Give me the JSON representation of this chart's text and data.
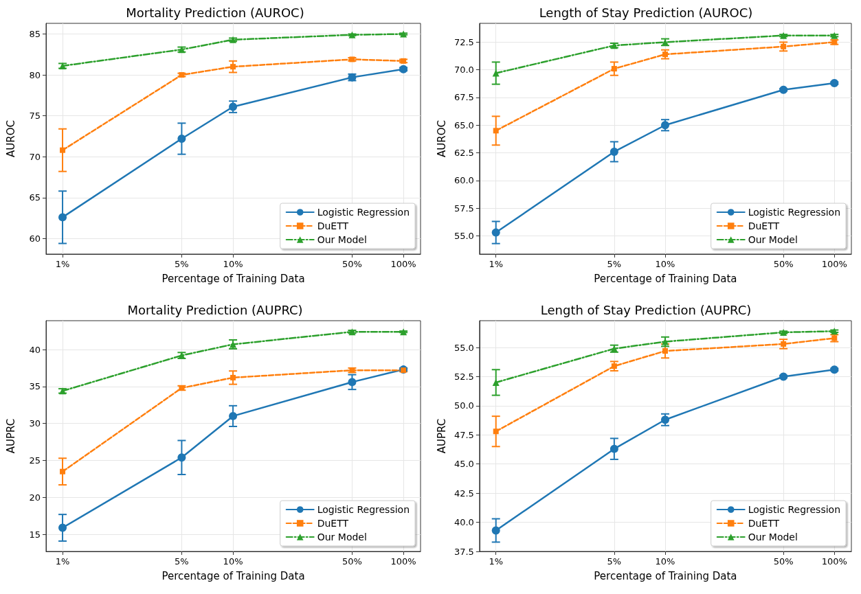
{
  "chart_data": [
    {
      "type": "line",
      "title": "Mortality Prediction (AUROC)",
      "xlabel": "Percentage of Training Data",
      "ylabel": "AUROC",
      "x": [
        1,
        5,
        10,
        50,
        100
      ],
      "log": "x",
      "xlim": [
        0.8,
        126
      ],
      "xticks": [
        {
          "value": 1,
          "label": "1%"
        },
        {
          "value": 5,
          "label": "5%"
        },
        {
          "value": 10,
          "label": "10%"
        },
        {
          "value": 50,
          "label": "50%"
        },
        {
          "value": 100,
          "label": "100%"
        }
      ],
      "ylim": [
        58.1,
        86.3
      ],
      "yticks": [
        60,
        65,
        70,
        75,
        80,
        85
      ],
      "grid": true,
      "legend": "bottom right",
      "series": [
        {
          "name": "Logistic Regression",
          "color": "#1f77b4",
          "marker": "circle",
          "line_style": "solid",
          "values": [
            62.6,
            72.2,
            76.1,
            79.7,
            80.7
          ],
          "errors": [
            3.2,
            1.9,
            0.7,
            0.4,
            0.2
          ]
        },
        {
          "name": "DuETT",
          "color": "#ff7f0e",
          "marker": "square",
          "line_style": "dashed",
          "values": [
            70.8,
            80.0,
            81.0,
            81.9,
            81.7
          ],
          "errors": [
            2.6,
            0.2,
            0.7,
            0.2,
            0.2
          ]
        },
        {
          "name": "Our Model",
          "color": "#2ca02c",
          "marker": "triangle",
          "line_style": "dashdot",
          "values": [
            81.1,
            83.1,
            84.3,
            84.9,
            85.0
          ],
          "errors": [
            0.3,
            0.3,
            0.2,
            0.1,
            0.1
          ]
        }
      ]
    },
    {
      "type": "line",
      "title": "Length of Stay Prediction (AUROC)",
      "xlabel": "Percentage of Training Data",
      "ylabel": "AUROC",
      "x": [
        1,
        5,
        10,
        50,
        100
      ],
      "log": "x",
      "xlim": [
        0.8,
        126
      ],
      "xticks": [
        {
          "value": 1,
          "label": "1%"
        },
        {
          "value": 5,
          "label": "5%"
        },
        {
          "value": 10,
          "label": "10%"
        },
        {
          "value": 50,
          "label": "50%"
        },
        {
          "value": 100,
          "label": "100%"
        }
      ],
      "ylim": [
        53.35,
        74.2
      ],
      "yticks": [
        {
          "value": 55,
          "label": "55.0"
        },
        57.5,
        {
          "value": 60,
          "label": "60.0"
        },
        62.5,
        {
          "value": 65,
          "label": "65.0"
        },
        67.5,
        {
          "value": 70,
          "label": "70.0"
        },
        72.5
      ],
      "grid": true,
      "legend": "bottom right",
      "series": [
        {
          "name": "Logistic Regression",
          "color": "#1f77b4",
          "marker": "circle",
          "line_style": "solid",
          "values": [
            55.3,
            62.6,
            65.0,
            68.2,
            68.8
          ],
          "errors": [
            1.0,
            0.9,
            0.5,
            0.1,
            0.1
          ]
        },
        {
          "name": "DuETT",
          "color": "#ff7f0e",
          "marker": "square",
          "line_style": "dashed",
          "values": [
            64.5,
            70.1,
            71.4,
            72.1,
            72.5
          ],
          "errors": [
            1.3,
            0.6,
            0.4,
            0.4,
            0.2
          ]
        },
        {
          "name": "Our Model",
          "color": "#2ca02c",
          "marker": "triangle",
          "line_style": "dashdot",
          "values": [
            69.7,
            72.2,
            72.5,
            73.1,
            73.1
          ],
          "errors": [
            1.0,
            0.2,
            0.3,
            0.1,
            0.1
          ]
        }
      ]
    },
    {
      "type": "line",
      "title": "Mortality Prediction (AUPRC)",
      "xlabel": "Percentage of Training Data",
      "ylabel": "AUPRC",
      "x": [
        1,
        5,
        10,
        50,
        100
      ],
      "log": "x",
      "xlim": [
        0.8,
        126
      ],
      "xticks": [
        {
          "value": 1,
          "label": "1%"
        },
        {
          "value": 5,
          "label": "5%"
        },
        {
          "value": 10,
          "label": "10%"
        },
        {
          "value": 50,
          "label": "50%"
        },
        {
          "value": 100,
          "label": "100%"
        }
      ],
      "ylim": [
        12.7,
        43.9
      ],
      "yticks": [
        15,
        20,
        25,
        30,
        35,
        40
      ],
      "grid": true,
      "legend": "bottom right",
      "series": [
        {
          "name": "Logistic Regression",
          "color": "#1f77b4",
          "marker": "circle",
          "line_style": "solid",
          "values": [
            15.9,
            25.4,
            31.0,
            35.6,
            37.3
          ],
          "errors": [
            1.8,
            2.3,
            1.4,
            1.0,
            0.2
          ]
        },
        {
          "name": "DuETT",
          "color": "#ff7f0e",
          "marker": "square",
          "line_style": "dashed",
          "values": [
            23.5,
            34.8,
            36.2,
            37.2,
            37.2
          ],
          "errors": [
            1.8,
            0.3,
            0.9,
            0.3,
            0.2
          ]
        },
        {
          "name": "Our Model",
          "color": "#2ca02c",
          "marker": "triangle",
          "line_style": "dashdot",
          "values": [
            34.4,
            39.2,
            40.7,
            42.4,
            42.4
          ],
          "errors": [
            0.3,
            0.4,
            0.6,
            0.2,
            0.1
          ]
        }
      ]
    },
    {
      "type": "line",
      "title": "Length of Stay Prediction (AUPRC)",
      "xlabel": "Percentage of Training Data",
      "ylabel": "AUPRC",
      "x": [
        1,
        5,
        10,
        50,
        100
      ],
      "log": "x",
      "xlim": [
        0.8,
        126
      ],
      "xticks": [
        {
          "value": 1,
          "label": "1%"
        },
        {
          "value": 5,
          "label": "5%"
        },
        {
          "value": 10,
          "label": "10%"
        },
        {
          "value": 50,
          "label": "50%"
        },
        {
          "value": 100,
          "label": "100%"
        }
      ],
      "ylim": [
        37.5,
        57.3
      ],
      "yticks": [
        37.5,
        {
          "value": 40,
          "label": "40.0"
        },
        42.5,
        {
          "value": 45,
          "label": "45.0"
        },
        47.5,
        {
          "value": 50,
          "label": "50.0"
        },
        52.5,
        {
          "value": 55,
          "label": "55.0"
        }
      ],
      "grid": true,
      "legend": "bottom right",
      "series": [
        {
          "name": "Logistic Regression",
          "color": "#1f77b4",
          "marker": "circle",
          "line_style": "solid",
          "values": [
            39.3,
            46.3,
            48.8,
            52.5,
            53.1
          ],
          "errors": [
            1.0,
            0.9,
            0.5,
            0.1,
            0.1
          ]
        },
        {
          "name": "DuETT",
          "color": "#ff7f0e",
          "marker": "square",
          "line_style": "dashed",
          "values": [
            47.8,
            53.4,
            54.7,
            55.3,
            55.8
          ],
          "errors": [
            1.3,
            0.4,
            0.6,
            0.4,
            0.3
          ]
        },
        {
          "name": "Our Model",
          "color": "#2ca02c",
          "marker": "triangle",
          "line_style": "dashdot",
          "values": [
            52.0,
            54.9,
            55.5,
            56.3,
            56.4
          ],
          "errors": [
            1.1,
            0.3,
            0.4,
            0.1,
            0.1
          ]
        }
      ]
    }
  ]
}
